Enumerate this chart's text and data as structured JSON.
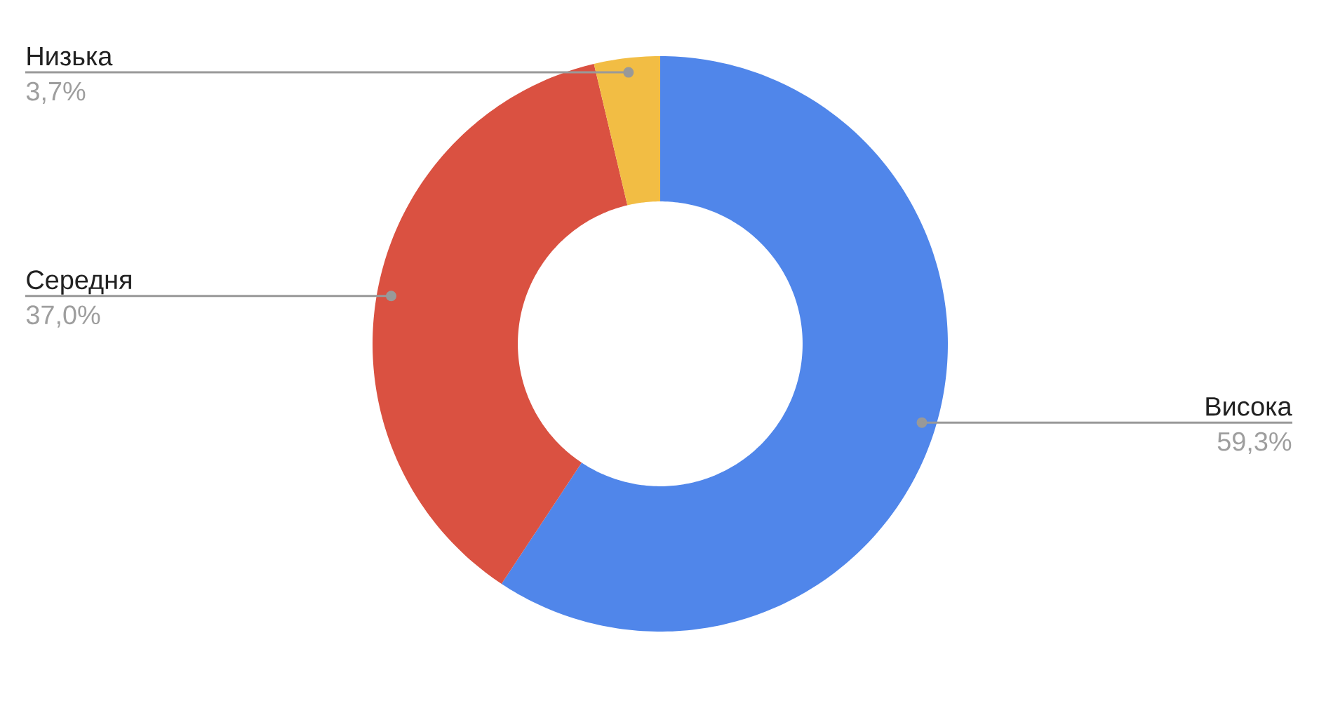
{
  "chart_data": {
    "type": "donut",
    "categories": [
      "Висока",
      "Середня",
      "Низька"
    ],
    "values": [
      59.3,
      37.0,
      3.7
    ],
    "colors": [
      "#5086ea",
      "#da5141",
      "#f2bd44"
    ],
    "value_labels": [
      "59,3%",
      "37,0%",
      "3,7%"
    ]
  }
}
